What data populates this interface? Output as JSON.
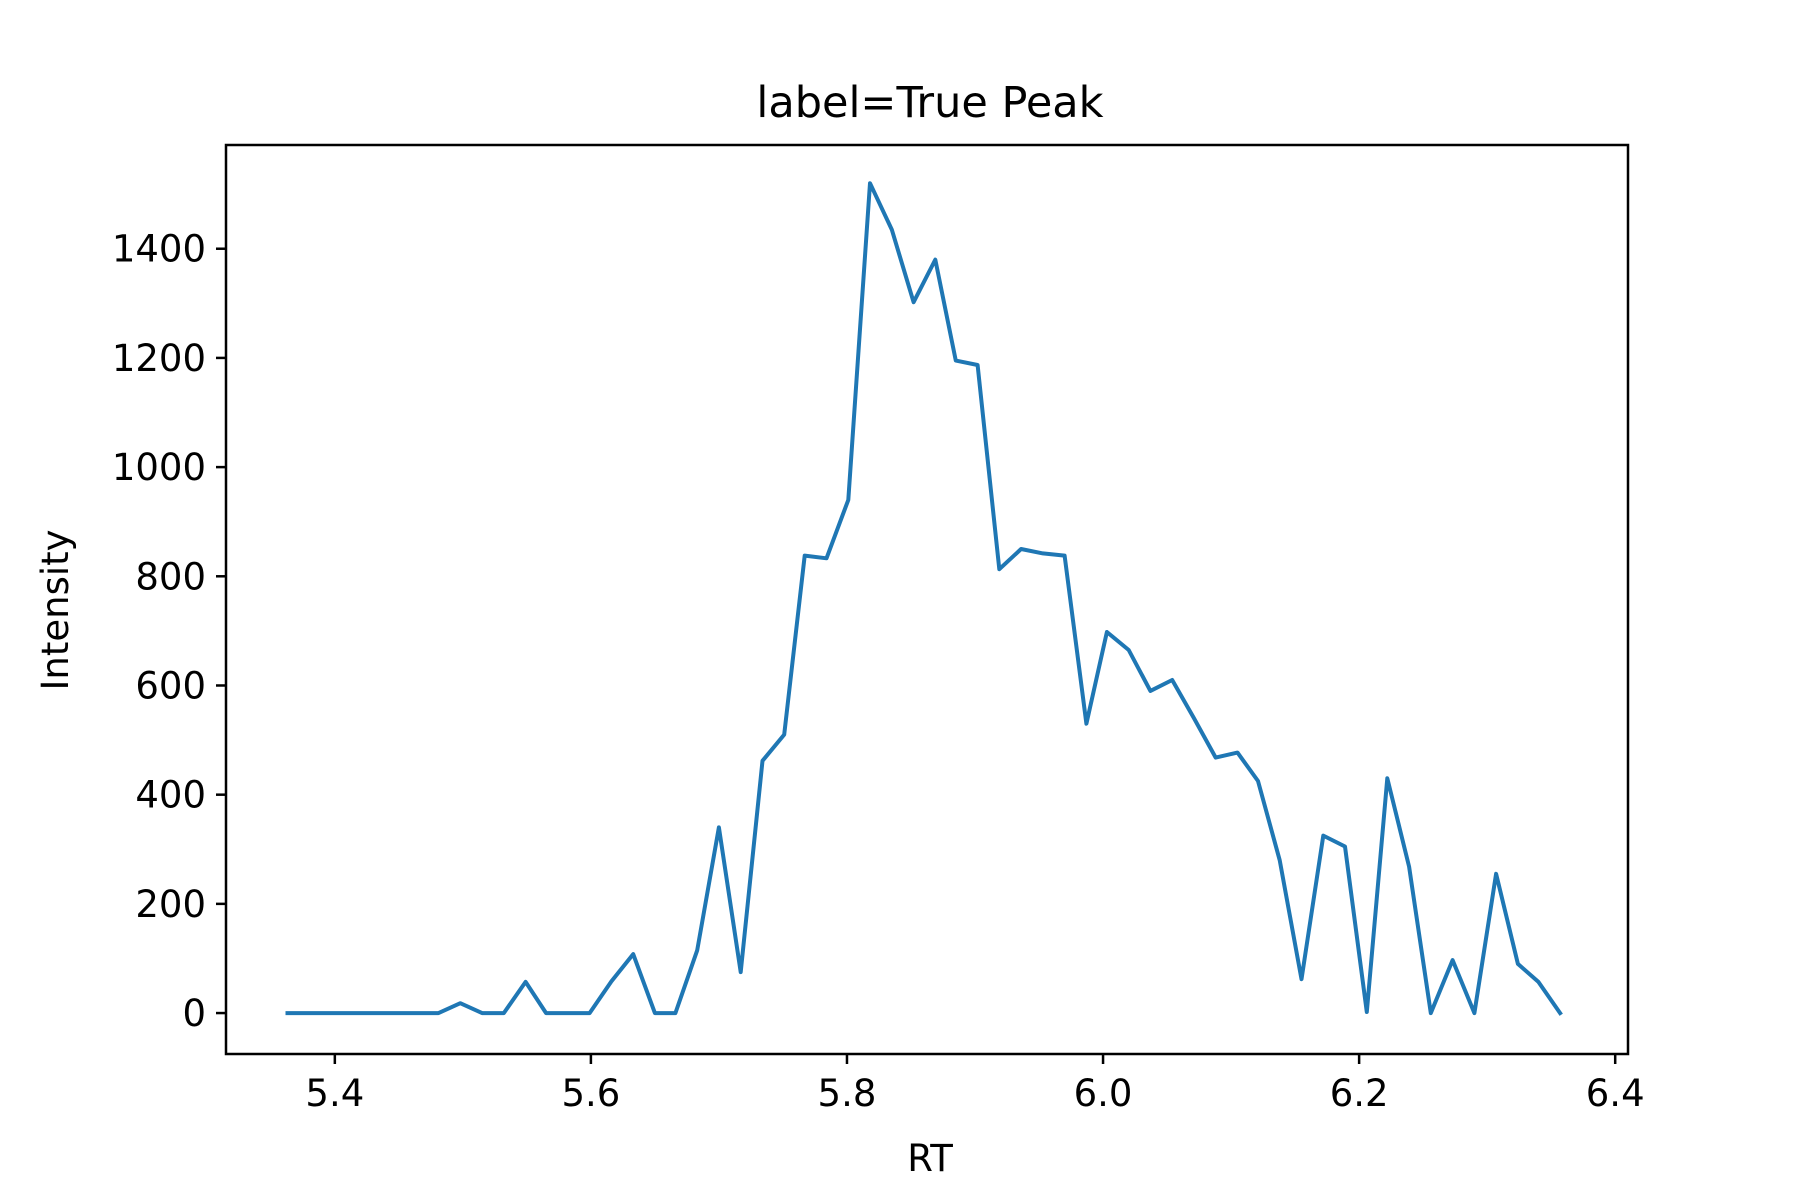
{
  "chart_data": {
    "type": "line",
    "title": "label=True Peak",
    "xlabel": "RT",
    "ylabel": "Intensity",
    "xlim": [
      5.315,
      6.41
    ],
    "ylim": [
      -75,
      1590
    ],
    "xticks": [
      5.4,
      5.6,
      5.8,
      6.0,
      6.2,
      6.4
    ],
    "xtick_labels": [
      "5.4",
      "5.6",
      "5.8",
      "6.0",
      "6.2",
      "6.4"
    ],
    "yticks": [
      0,
      200,
      400,
      600,
      800,
      1000,
      1200,
      1400
    ],
    "ytick_labels": [
      "0",
      "200",
      "400",
      "600",
      "800",
      "1000",
      "1200",
      "1400"
    ],
    "grid": false,
    "legend": "none",
    "line_color": "#1f77b4",
    "series": [
      {
        "x": [
          5.363,
          5.38,
          5.397,
          5.414,
          5.431,
          5.448,
          5.464,
          5.481,
          5.498,
          5.515,
          5.532,
          5.549,
          5.565,
          5.582,
          5.599,
          5.616,
          5.633,
          5.65,
          5.666,
          5.683,
          5.7,
          5.717,
          5.734,
          5.751,
          5.767,
          5.784,
          5.801,
          5.818,
          5.835,
          5.852,
          5.869,
          5.885,
          5.902,
          5.919,
          5.936,
          5.953,
          5.97,
          5.987,
          6.003,
          6.02,
          6.037,
          6.054,
          6.071,
          6.088,
          6.105,
          6.121,
          6.138,
          6.155,
          6.172,
          6.189,
          6.206,
          6.222,
          6.239,
          6.256,
          6.273,
          6.29,
          6.307,
          6.324,
          6.34,
          6.357
        ],
        "y": [
          0,
          0,
          0,
          0,
          0,
          0,
          0,
          0,
          18,
          0,
          0,
          57,
          0,
          0,
          0,
          58,
          108,
          0,
          0,
          115,
          340,
          75,
          462,
          510,
          838,
          833,
          940,
          1520,
          1435,
          1302,
          1380,
          1195,
          1187,
          813,
          850,
          842,
          838,
          530,
          698,
          665,
          590,
          610,
          540,
          468,
          477,
          425,
          280,
          62,
          325,
          305,
          2,
          430,
          268,
          0,
          97,
          0,
          255,
          90,
          57,
          0
        ]
      }
    ]
  }
}
